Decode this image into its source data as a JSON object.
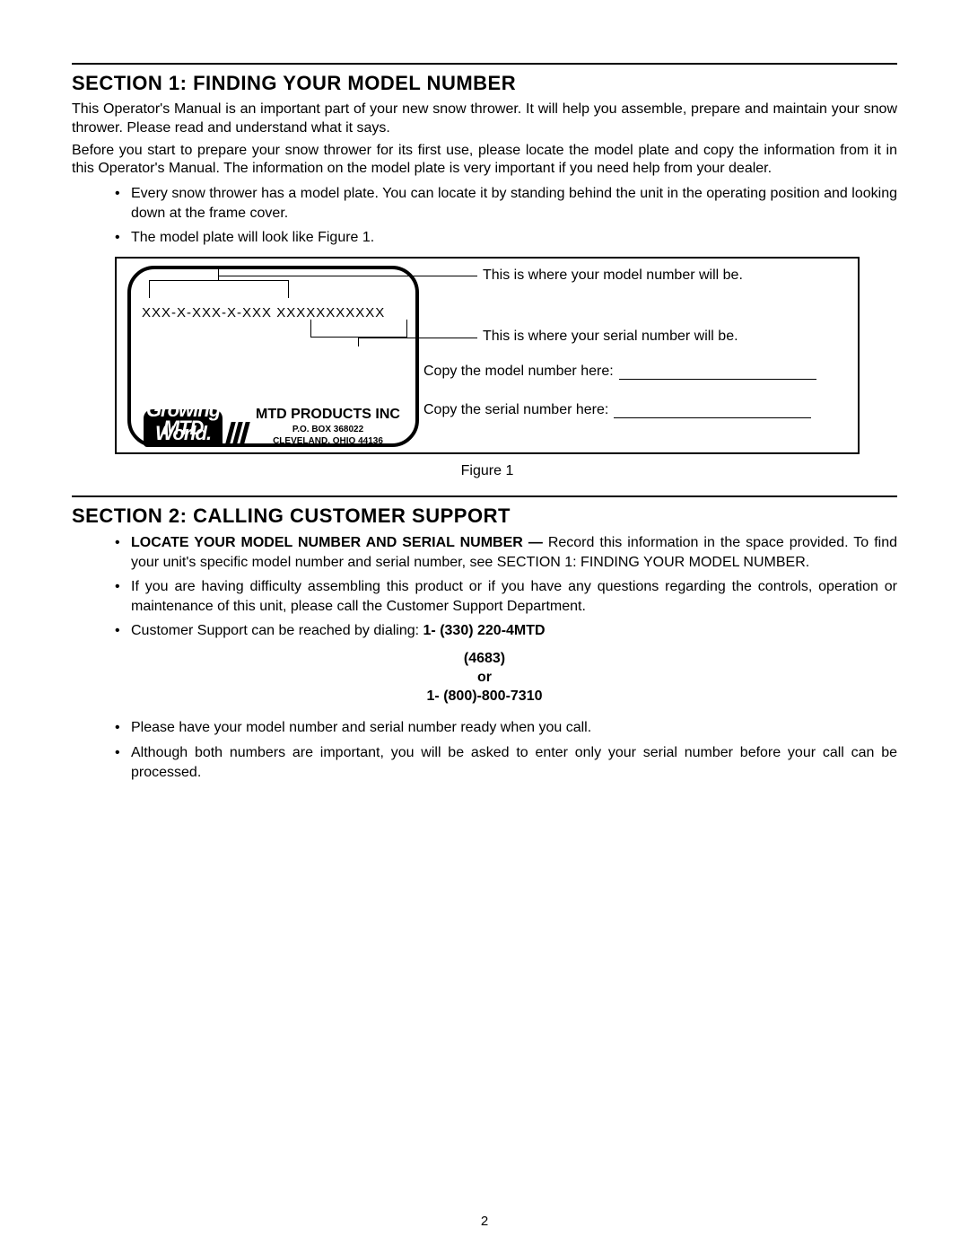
{
  "section1": {
    "title": "SECTION 1:  FINDING YOUR MODEL NUMBER",
    "para1": "This Operator's Manual is an important part of your new snow thrower. It will help you assemble, prepare and maintain your snow thrower. Please read and understand what it says.",
    "para2": "Before you start to prepare your snow thrower for its first use, please locate the model plate and copy the information from it in this Operator's Manual. The information on the model plate is very important if you need help from your dealer.",
    "bullets": [
      "Every snow thrower has a model plate. You can locate it by standing behind the unit in the operating position and looking down at the frame cover.",
      "The model plate will look like Figure 1."
    ]
  },
  "figure": {
    "model_placeholder": "XXX-X-XXX-X-XXX  XXXXXXXXXXX",
    "logo_text": "MTD",
    "logo_tagline": "For A Growing World.",
    "company": "MTD PRODUCTS INC",
    "addr1": "P.O. BOX 368022",
    "addr2": "CLEVELAND, OHIO  44136",
    "callout_model": "This is where your model number will be.",
    "callout_serial": "This is where your serial number will be.",
    "copy_model": "Copy the model number here:",
    "copy_serial": "Copy the serial number here:",
    "caption": "Figure 1"
  },
  "section2": {
    "title": "SECTION 2:  CALLING CUSTOMER SUPPORT",
    "b1_bold": "LOCATE YOUR MODEL NUMBER AND SERIAL NUMBER — ",
    "b1_rest": "Record this information in the space provided. To find your unit's specific model number and serial number, see SECTION 1: FINDING YOUR MODEL NUMBER.",
    "b2": "If you are having difficulty assembling this product or if you have any questions regarding the controls, operation or maintenance of this unit, please call the Customer Support Department.",
    "b3_prefix": "Customer Support can be reached by dialing:  ",
    "phone1": "1- (330) 220-4MTD",
    "phone2": "(4683)",
    "phone_or": "or",
    "phone3": "1- (800)-800-7310",
    "b4": "Please have your model number and serial number ready when you call.",
    "b5": "Although both numbers are important, you will be asked to enter only your serial  number before your call can be processed."
  },
  "page_number": "2"
}
